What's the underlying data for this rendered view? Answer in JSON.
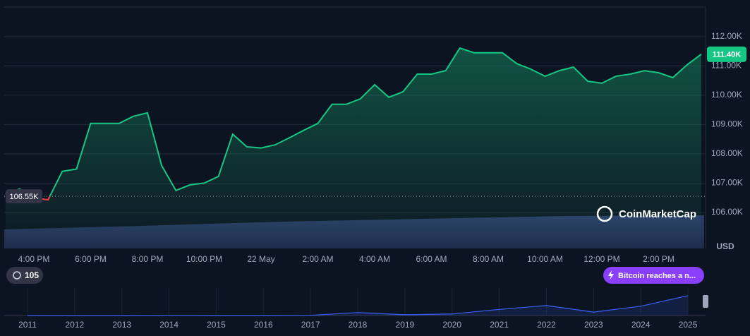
{
  "chart_data": [
    {
      "type": "line",
      "categories": [
        null,
        null,
        "4:00 PM",
        null,
        null,
        null,
        "6:00 PM",
        null,
        null,
        null,
        "8:00 PM",
        null,
        null,
        null,
        "10:00 PM",
        null,
        null,
        null,
        "22 May",
        null,
        null,
        null,
        "2:00 AM",
        null,
        null,
        null,
        "4:00 AM",
        null,
        null,
        null,
        "6:00 AM",
        null,
        null,
        null,
        "8:00 AM",
        null,
        null,
        null,
        "10:00 AM",
        null,
        null,
        null,
        "12:00 PM",
        null,
        null,
        null,
        "2:00 PM",
        null,
        null,
        null
      ],
      "values": [
        106630,
        106800,
        106500,
        106430,
        107400,
        107480,
        109040,
        109040,
        109040,
        109280,
        109400,
        107600,
        106750,
        106940,
        107000,
        107230,
        108670,
        108240,
        108200,
        108310,
        108550,
        108800,
        109040,
        109690,
        109690,
        109880,
        110360,
        109930,
        110120,
        110720,
        110720,
        110840,
        111610,
        111450,
        111450,
        111450,
        111080,
        110890,
        110650,
        110840,
        110960,
        110480,
        110410,
        110650,
        110720,
        110840,
        110770,
        110600,
        111040,
        111400
      ],
      "color": "#16c784",
      "below_color": "#ea3943",
      "last_value_label": "111.40K",
      "reference_line": {
        "value": 106550,
        "label": "106.55K"
      },
      "ylim": [
        104770,
        113010
      ],
      "yticks": [
        {
          "value": 106000,
          "label": "106.00K"
        },
        {
          "value": 107000,
          "label": "107.00K"
        },
        {
          "value": 108000,
          "label": "108.00K"
        },
        {
          "value": 109000,
          "label": "109.00K"
        },
        {
          "value": 110000,
          "label": "110.00K"
        },
        {
          "value": 111000,
          "label": "111.00K"
        },
        {
          "value": 112000,
          "label": "112.00K"
        }
      ],
      "y_axis_label": "USD",
      "grid": true
    },
    {
      "type": "line",
      "categories": [
        "2011",
        "2012",
        "2013",
        "2014",
        "2015",
        "2016",
        "2017",
        "2018",
        "2019",
        "2020",
        "2021",
        "2022",
        "2023",
        "2024",
        "2025"
      ],
      "values": [
        0.3,
        5,
        13,
        800,
        300,
        430,
        1000,
        14000,
        3700,
        7200,
        29000,
        47000,
        16500,
        44000,
        94000
      ],
      "color": "#3861fb",
      "ylim": [
        0,
        130000
      ]
    }
  ],
  "ui": {
    "brand": "CoinMarketCap",
    "badge_count": "105",
    "news_badge": "Bitcoin reaches a n..."
  }
}
